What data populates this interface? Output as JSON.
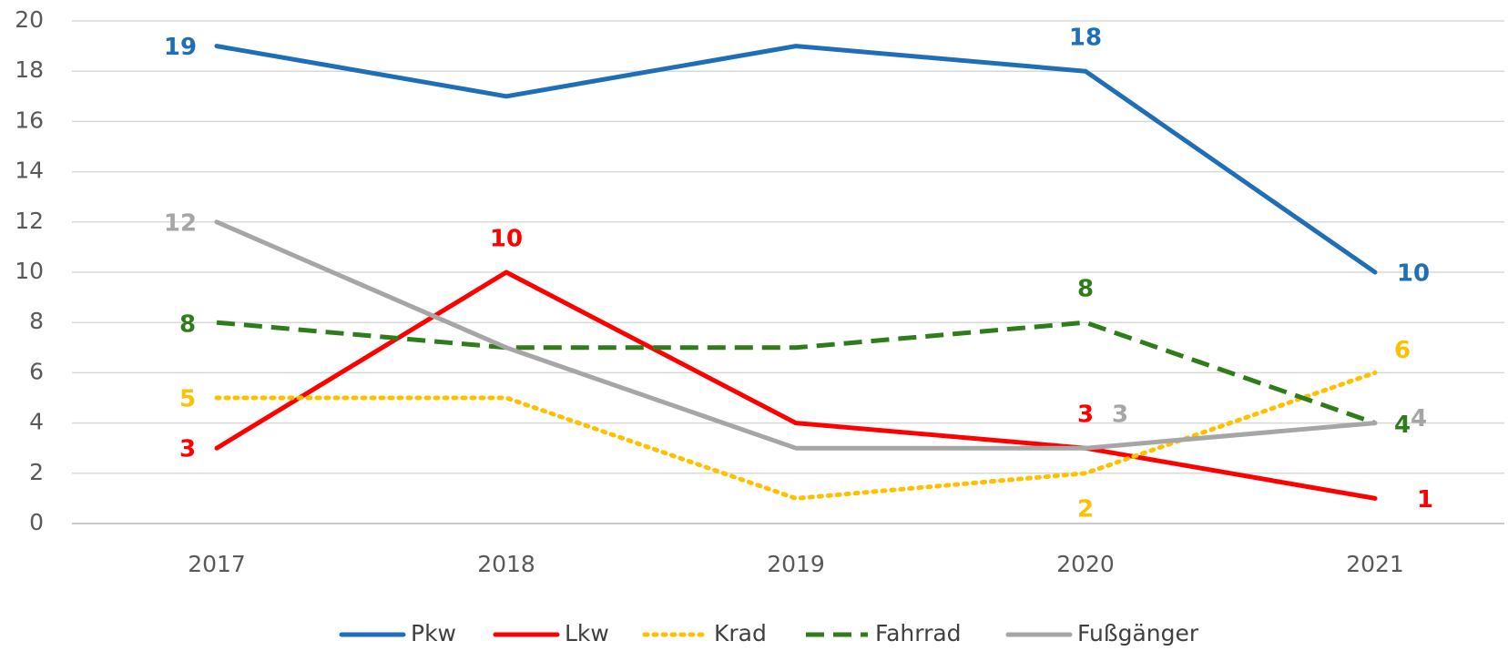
{
  "chart_data": {
    "type": "line",
    "categories": [
      "2017",
      "2018",
      "2019",
      "2020",
      "2021"
    ],
    "ylim": [
      0,
      20
    ],
    "yticks": [
      0,
      2,
      4,
      6,
      8,
      10,
      12,
      14,
      16,
      18,
      20
    ],
    "grid": true,
    "legend": "bottom",
    "series": [
      {
        "name": "Pkw",
        "color": "#1f6fb8",
        "dash": "solid",
        "values": [
          19,
          17,
          19,
          18,
          10
        ],
        "labeled_points": [
          0,
          3,
          4
        ]
      },
      {
        "name": "Lkw",
        "color": "#ff0000",
        "dash": "solid",
        "values": [
          3,
          10,
          4,
          3,
          1
        ],
        "labeled_points": [
          0,
          1,
          3,
          4
        ]
      },
      {
        "name": "Krad",
        "color": "#ffc000",
        "dash": "dotted",
        "values": [
          5,
          5,
          1,
          2,
          6
        ],
        "labeled_points": [
          0,
          3,
          4
        ]
      },
      {
        "name": "Fahrrad",
        "color": "#2e7d1a",
        "dash": "dashed",
        "values": [
          8,
          7,
          7,
          8,
          4
        ],
        "labeled_points": [
          0,
          3,
          4
        ]
      },
      {
        "name": "Fußgänger",
        "color": "#a6a6a6",
        "dash": "solid",
        "values": [
          12,
          7,
          3,
          3,
          4
        ],
        "labeled_points": [
          0,
          3,
          4
        ]
      }
    ]
  }
}
